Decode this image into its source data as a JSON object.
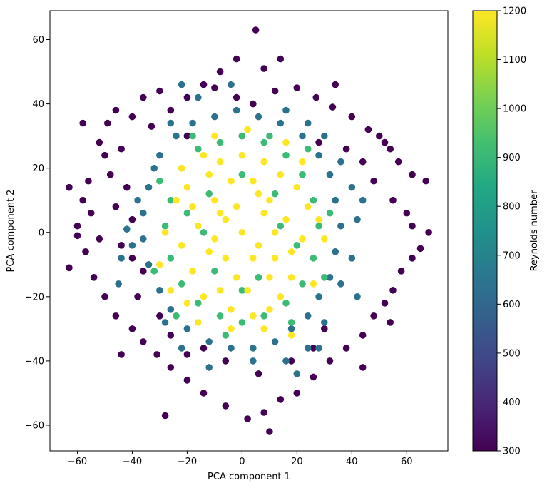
{
  "chart_data": {
    "type": "scatter",
    "title": "",
    "xlabel": "PCA component 1",
    "ylabel": "PCA component 2",
    "xlim": [
      -70,
      75
    ],
    "ylim": [
      -68,
      69
    ],
    "xticks": [
      -60,
      -40,
      -20,
      0,
      20,
      40,
      60
    ],
    "yticks": [
      -60,
      -40,
      -20,
      0,
      20,
      40,
      60
    ],
    "xtick_labels": [
      "−60",
      "−40",
      "−20",
      "0",
      "20",
      "40",
      "60"
    ],
    "ytick_labels": [
      "−60",
      "−40",
      "−20",
      "0",
      "20",
      "40",
      "60"
    ],
    "grid": false,
    "colorbar": {
      "label": "Reynolds number",
      "colormap": "viridis",
      "range": [
        300,
        1200
      ],
      "ticks": [
        300,
        400,
        500,
        600,
        700,
        800,
        900,
        1000,
        1100,
        1200
      ],
      "tick_labels": [
        "300",
        "400",
        "500",
        "600",
        "700",
        "800",
        "900",
        "1000",
        "1100",
        "1200"
      ]
    },
    "series": [
      {
        "color_value": 300,
        "color": "#440154",
        "points": [
          [
            -58,
            34
          ],
          [
            -49,
            34
          ],
          [
            -46,
            38
          ],
          [
            -40,
            36
          ],
          [
            -33,
            33
          ],
          [
            -26,
            38
          ],
          [
            -20,
            42
          ],
          [
            -14,
            46
          ],
          [
            -8,
            50
          ],
          [
            -2,
            54
          ],
          [
            5,
            63
          ],
          [
            8,
            51
          ],
          [
            14,
            54
          ],
          [
            20,
            45
          ],
          [
            27,
            42
          ],
          [
            33,
            39
          ],
          [
            40,
            36
          ],
          [
            46,
            32
          ],
          [
            50,
            30
          ],
          [
            54,
            26
          ],
          [
            57,
            22
          ],
          [
            62,
            18
          ],
          [
            67,
            16
          ],
          [
            -63,
            14
          ],
          [
            -58,
            10
          ],
          [
            -55,
            6
          ],
          [
            -60,
            2
          ],
          [
            -52,
            -2
          ],
          [
            -57,
            -6
          ],
          [
            -63,
            -11
          ],
          [
            -54,
            -14
          ],
          [
            -50,
            -20
          ],
          [
            -46,
            -26
          ],
          [
            -40,
            -30
          ],
          [
            -36,
            -34
          ],
          [
            -31,
            -38
          ],
          [
            -26,
            -42
          ],
          [
            -20,
            -46
          ],
          [
            -14,
            -50
          ],
          [
            -6,
            -54
          ],
          [
            2,
            -58
          ],
          [
            8,
            -56
          ],
          [
            14,
            -52
          ],
          [
            20,
            -50
          ],
          [
            26,
            -45
          ],
          [
            32,
            -40
          ],
          [
            38,
            -36
          ],
          [
            44,
            -32
          ],
          [
            48,
            -26
          ],
          [
            52,
            -22
          ],
          [
            55,
            -18
          ],
          [
            58,
            -12
          ],
          [
            62,
            -8
          ],
          [
            65,
            -5
          ],
          [
            68,
            0
          ],
          [
            60,
            6
          ],
          [
            55,
            10
          ],
          [
            48,
            16
          ],
          [
            44,
            22
          ],
          [
            38,
            26
          ],
          [
            -50,
            24
          ],
          [
            -44,
            26
          ],
          [
            -48,
            18
          ],
          [
            -42,
            14
          ],
          [
            -46,
            8
          ],
          [
            -40,
            4
          ],
          [
            -44,
            -4
          ],
          [
            -40,
            -8
          ],
          [
            -36,
            -12
          ],
          [
            -38,
            -20
          ],
          [
            -30,
            -26
          ],
          [
            -26,
            -32
          ],
          [
            10,
            -62
          ],
          [
            -28,
            -57
          ],
          [
            0,
            30
          ],
          [
            -20,
            30
          ],
          [
            30,
            -30
          ],
          [
            28,
            28
          ],
          [
            -2,
            42
          ],
          [
            4,
            40
          ],
          [
            -10,
            45
          ],
          [
            12,
            44
          ],
          [
            -30,
            44
          ],
          [
            34,
            46
          ],
          [
            -36,
            42
          ],
          [
            -52,
            28
          ],
          [
            52,
            28
          ],
          [
            -60,
            -1
          ],
          [
            62,
            2
          ],
          [
            -56,
            16
          ],
          [
            54,
            -28
          ],
          [
            -44,
            -38
          ],
          [
            44,
            -42
          ],
          [
            -20,
            -38
          ],
          [
            18,
            -40
          ],
          [
            -6,
            -40
          ],
          [
            6,
            -44
          ],
          [
            -14,
            -36
          ],
          [
            26,
            -36
          ]
        ]
      },
      {
        "color_value": 620,
        "color": "#2c728e",
        "points": [
          [
            -30,
            24
          ],
          [
            -24,
            30
          ],
          [
            -18,
            34
          ],
          [
            -10,
            36
          ],
          [
            -2,
            38
          ],
          [
            6,
            36
          ],
          [
            14,
            34
          ],
          [
            22,
            30
          ],
          [
            28,
            24
          ],
          [
            32,
            18
          ],
          [
            34,
            10
          ],
          [
            36,
            2
          ],
          [
            34,
            -6
          ],
          [
            32,
            -14
          ],
          [
            28,
            -20
          ],
          [
            24,
            -26
          ],
          [
            18,
            -30
          ],
          [
            12,
            -34
          ],
          [
            4,
            -36
          ],
          [
            -4,
            -36
          ],
          [
            -12,
            -34
          ],
          [
            -20,
            -30
          ],
          [
            -26,
            -24
          ],
          [
            -30,
            -18
          ],
          [
            -34,
            -10
          ],
          [
            -36,
            -2
          ],
          [
            -36,
            6
          ],
          [
            -34,
            14
          ],
          [
            -32,
            20
          ],
          [
            -42,
            1
          ],
          [
            -40,
            -4
          ],
          [
            -28,
            -28
          ],
          [
            -22,
            -36
          ],
          [
            16,
            -40
          ],
          [
            24,
            -36
          ],
          [
            30,
            -28
          ],
          [
            36,
            -16
          ],
          [
            40,
            -8
          ],
          [
            42,
            4
          ],
          [
            40,
            14
          ],
          [
            36,
            22
          ],
          [
            30,
            30
          ],
          [
            24,
            34
          ],
          [
            16,
            38
          ],
          [
            -16,
            42
          ],
          [
            -26,
            34
          ],
          [
            -38,
            10
          ],
          [
            -44,
            -8
          ],
          [
            -12,
            -42
          ],
          [
            4,
            -40
          ],
          [
            20,
            -44
          ],
          [
            42,
            -20
          ],
          [
            -45,
            -16
          ],
          [
            44,
            10
          ],
          [
            28,
            -36
          ],
          [
            -22,
            46
          ],
          [
            -4,
            46
          ]
        ]
      },
      {
        "color_value": 850,
        "color": "#3bbb75",
        "points": [
          [
            -22,
            20
          ],
          [
            -16,
            26
          ],
          [
            -8,
            28
          ],
          [
            0,
            30
          ],
          [
            8,
            28
          ],
          [
            16,
            24
          ],
          [
            22,
            18
          ],
          [
            26,
            10
          ],
          [
            28,
            2
          ],
          [
            26,
            -8
          ],
          [
            22,
            -16
          ],
          [
            16,
            -22
          ],
          [
            8,
            -26
          ],
          [
            0,
            -28
          ],
          [
            -8,
            -26
          ],
          [
            -16,
            -22
          ],
          [
            -22,
            -16
          ],
          [
            -26,
            -8
          ],
          [
            -28,
            2
          ],
          [
            -26,
            10
          ],
          [
            -20,
            6
          ],
          [
            -12,
            12
          ],
          [
            12,
            12
          ],
          [
            20,
            -4
          ],
          [
            -10,
            -12
          ],
          [
            6,
            -14
          ],
          [
            -14,
            0
          ],
          [
            14,
            2
          ],
          [
            0,
            18
          ],
          [
            0,
            -18
          ],
          [
            -30,
            16
          ],
          [
            30,
            -14
          ],
          [
            -32,
            -12
          ],
          [
            24,
            26
          ],
          [
            -24,
            -26
          ],
          [
            18,
            -28
          ],
          [
            -18,
            30
          ],
          [
            10,
            30
          ],
          [
            -6,
            -32
          ],
          [
            32,
            6
          ]
        ]
      },
      {
        "color_value": 1200,
        "color": "#fde725",
        "points": [
          [
            0,
            0
          ],
          [
            -6,
            4
          ],
          [
            6,
            -4
          ],
          [
            -10,
            10
          ],
          [
            10,
            10
          ],
          [
            -12,
            -6
          ],
          [
            12,
            -8
          ],
          [
            -4,
            16
          ],
          [
            4,
            16
          ],
          [
            -16,
            2
          ],
          [
            16,
            4
          ],
          [
            -2,
            -14
          ],
          [
            2,
            -18
          ],
          [
            -18,
            -12
          ],
          [
            18,
            -14
          ],
          [
            -8,
            22
          ],
          [
            8,
            22
          ],
          [
            -20,
            14
          ],
          [
            20,
            14
          ],
          [
            -14,
            -20
          ],
          [
            14,
            -20
          ],
          [
            -4,
            -24
          ],
          [
            4,
            -26
          ],
          [
            -22,
            -4
          ],
          [
            22,
            -2
          ],
          [
            0,
            24
          ],
          [
            -6,
            -8
          ],
          [
            8,
            6
          ],
          [
            -12,
            18
          ],
          [
            14,
            18
          ],
          [
            -18,
            8
          ],
          [
            18,
            -6
          ],
          [
            -8,
            -18
          ],
          [
            10,
            -24
          ],
          [
            -24,
            10
          ],
          [
            24,
            8
          ],
          [
            -2,
            8
          ],
          [
            6,
            12
          ],
          [
            -10,
            -2
          ],
          [
            12,
            0
          ],
          [
            -26,
            -18
          ],
          [
            26,
            -16
          ],
          [
            -16,
            -28
          ],
          [
            18,
            -32
          ],
          [
            2,
            32
          ],
          [
            -10,
            30
          ],
          [
            -22,
            20
          ],
          [
            22,
            22
          ],
          [
            -28,
            0
          ],
          [
            28,
            4
          ],
          [
            -4,
            -30
          ],
          [
            8,
            -30
          ],
          [
            -14,
            24
          ],
          [
            16,
            28
          ],
          [
            -20,
            -22
          ],
          [
            4,
            -8
          ],
          [
            -8,
            6
          ],
          [
            10,
            -14
          ],
          [
            -30,
            -10
          ],
          [
            30,
            -2
          ]
        ]
      }
    ]
  }
}
